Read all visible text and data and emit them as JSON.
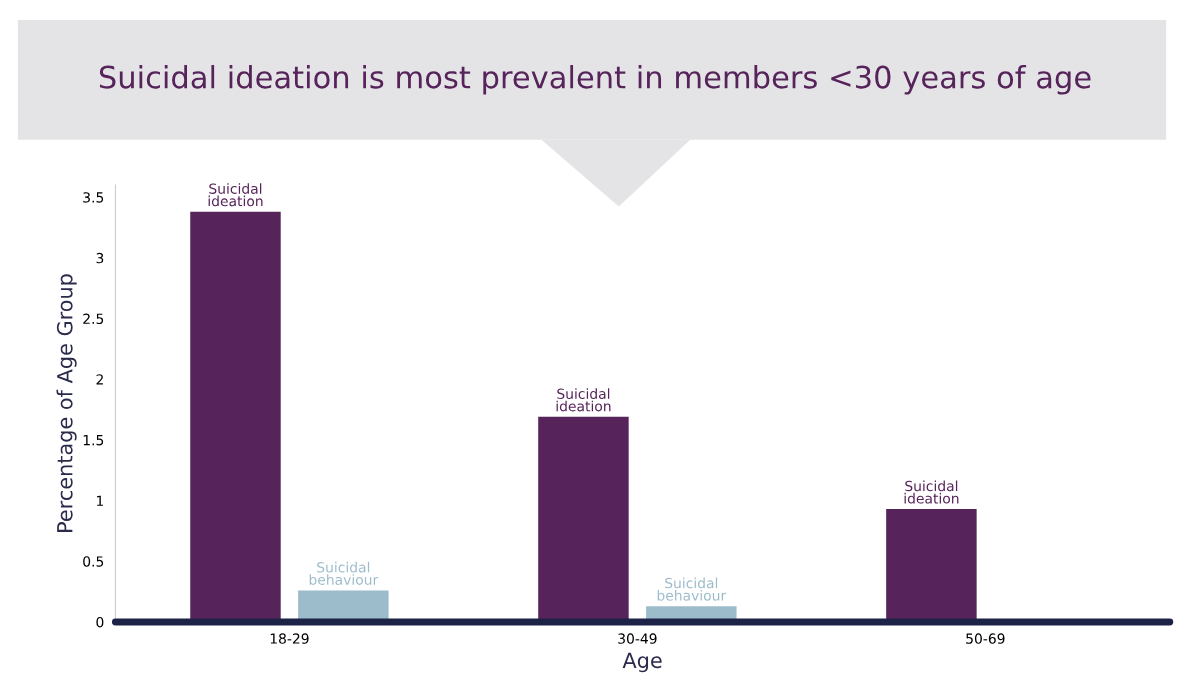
{
  "chart_data": {
    "type": "bar",
    "title": "Suicidal ideation is most prevalent in members <30 years of age",
    "xlabel": "Age",
    "ylabel": "Percentage of Age Group",
    "categories": [
      "18-29",
      "30-49",
      "50-69"
    ],
    "series": [
      {
        "name": "Suicidal ideation",
        "color": "#56235a",
        "values": [
          3.38,
          1.69,
          0.93
        ]
      },
      {
        "name": "Suicidal behaviour",
        "color": "#9cbccb",
        "values": [
          0.26,
          0.13,
          null
        ]
      }
    ],
    "ylim": [
      0,
      3.6
    ],
    "yticks": [
      0,
      0.5,
      1,
      1.5,
      2,
      2.5,
      3,
      3.5
    ],
    "grid": false,
    "legend": false
  }
}
